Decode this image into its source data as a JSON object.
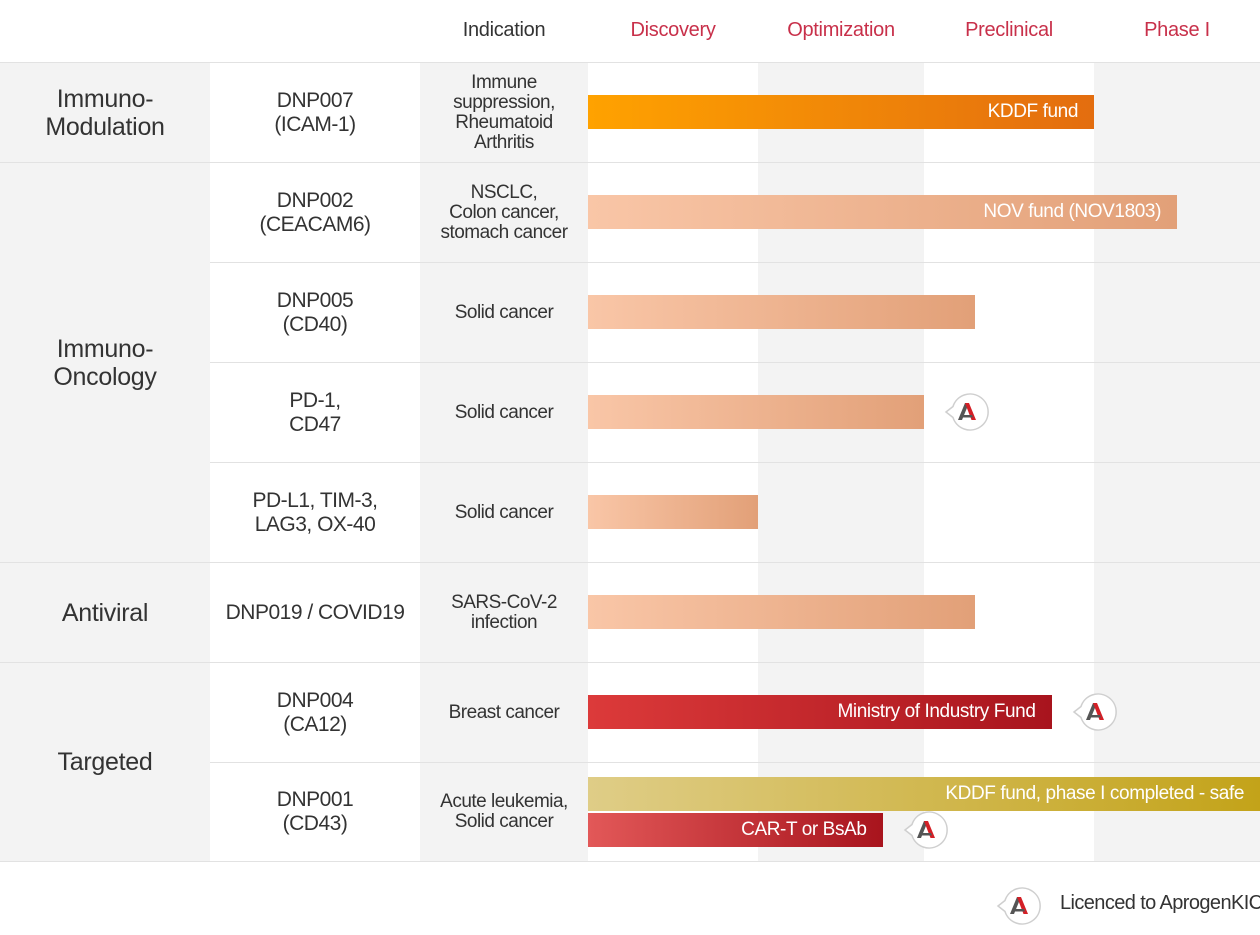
{
  "header": {
    "indication": "Indication",
    "stages": [
      "Discovery",
      "Optimization",
      "Preclinical",
      "Phase I"
    ]
  },
  "colors": {
    "stage_text": "#c8304a",
    "orange_start": "#ffa200",
    "orange_end": "#e36d0f",
    "peach_start": "#f9c6a7",
    "peach_end": "#e2a078",
    "red_start": "#dc3a3a",
    "red_end": "#a8141d",
    "gold_start": "#dfcd87",
    "gold_end": "#c3a319"
  },
  "categories": [
    {
      "label": "Immuno-\nModulation"
    },
    {
      "label": "Immuno-\nOncology"
    },
    {
      "label": "Antiviral"
    },
    {
      "label": "Targeted"
    }
  ],
  "rows": [
    {
      "candidate": "DNP007\n(ICAM-1)",
      "indication": "Immune\nsuppression,\nRheumatoid\nArthritis"
    },
    {
      "candidate": "DNP002\n(CEACAM6)",
      "indication": "NSCLC,\nColon cancer,\nstomach cancer"
    },
    {
      "candidate": "DNP005\n(CD40)",
      "indication": "Solid cancer"
    },
    {
      "candidate": "PD-1,\nCD47",
      "indication": "Solid cancer"
    },
    {
      "candidate": "PD-L1, TIM-3,\nLAG3, OX-40",
      "indication": "Solid cancer"
    },
    {
      "candidate": "DNP019 / COVID19",
      "indication": "SARS-CoV-2\ninfection"
    },
    {
      "candidate": "DNP004\n(CA12)",
      "indication": "Breast cancer"
    },
    {
      "candidate": "DNP001\n(CD43)",
      "indication": "Acute leukemia,\nSolid cancer"
    }
  ],
  "chart_data": {
    "type": "bar",
    "orientation": "horizontal",
    "stages": [
      "Discovery",
      "Optimization",
      "Preclinical",
      "Phase I"
    ],
    "unit": "pipeline stages reached (0 = start of Discovery, 4 = end of Phase I)",
    "bars": [
      {
        "row": 0,
        "progress": 3.0,
        "label": "KDDF fund",
        "style": "orange",
        "licensed": false
      },
      {
        "row": 1,
        "progress": 3.5,
        "label": "NOV fund (NOV1803)",
        "style": "peach",
        "licensed": false
      },
      {
        "row": 2,
        "progress": 2.3,
        "label": "",
        "style": "peach",
        "licensed": false
      },
      {
        "row": 3,
        "progress": 2.0,
        "label": "",
        "style": "peach",
        "licensed": true
      },
      {
        "row": 4,
        "progress": 1.0,
        "label": "",
        "style": "peach",
        "licensed": false
      },
      {
        "row": 5,
        "progress": 2.3,
        "label": "",
        "style": "peach",
        "licensed": false
      },
      {
        "row": 6,
        "progress": 2.75,
        "label": "Ministry of Industry Fund",
        "style": "red",
        "licensed": true
      },
      {
        "row": 7,
        "progress": 4.0,
        "label": "KDDF fund, phase I completed - safe",
        "style": "gold",
        "licensed": false,
        "slot": "upper"
      },
      {
        "row": 7,
        "progress": 1.75,
        "label": "CAR-T or BsAb",
        "style": "red_light",
        "licensed": true,
        "slot": "lower"
      }
    ]
  },
  "legend": {
    "text": "Licenced to AprogenKIC",
    "icon": "aprogen-logo-icon"
  }
}
